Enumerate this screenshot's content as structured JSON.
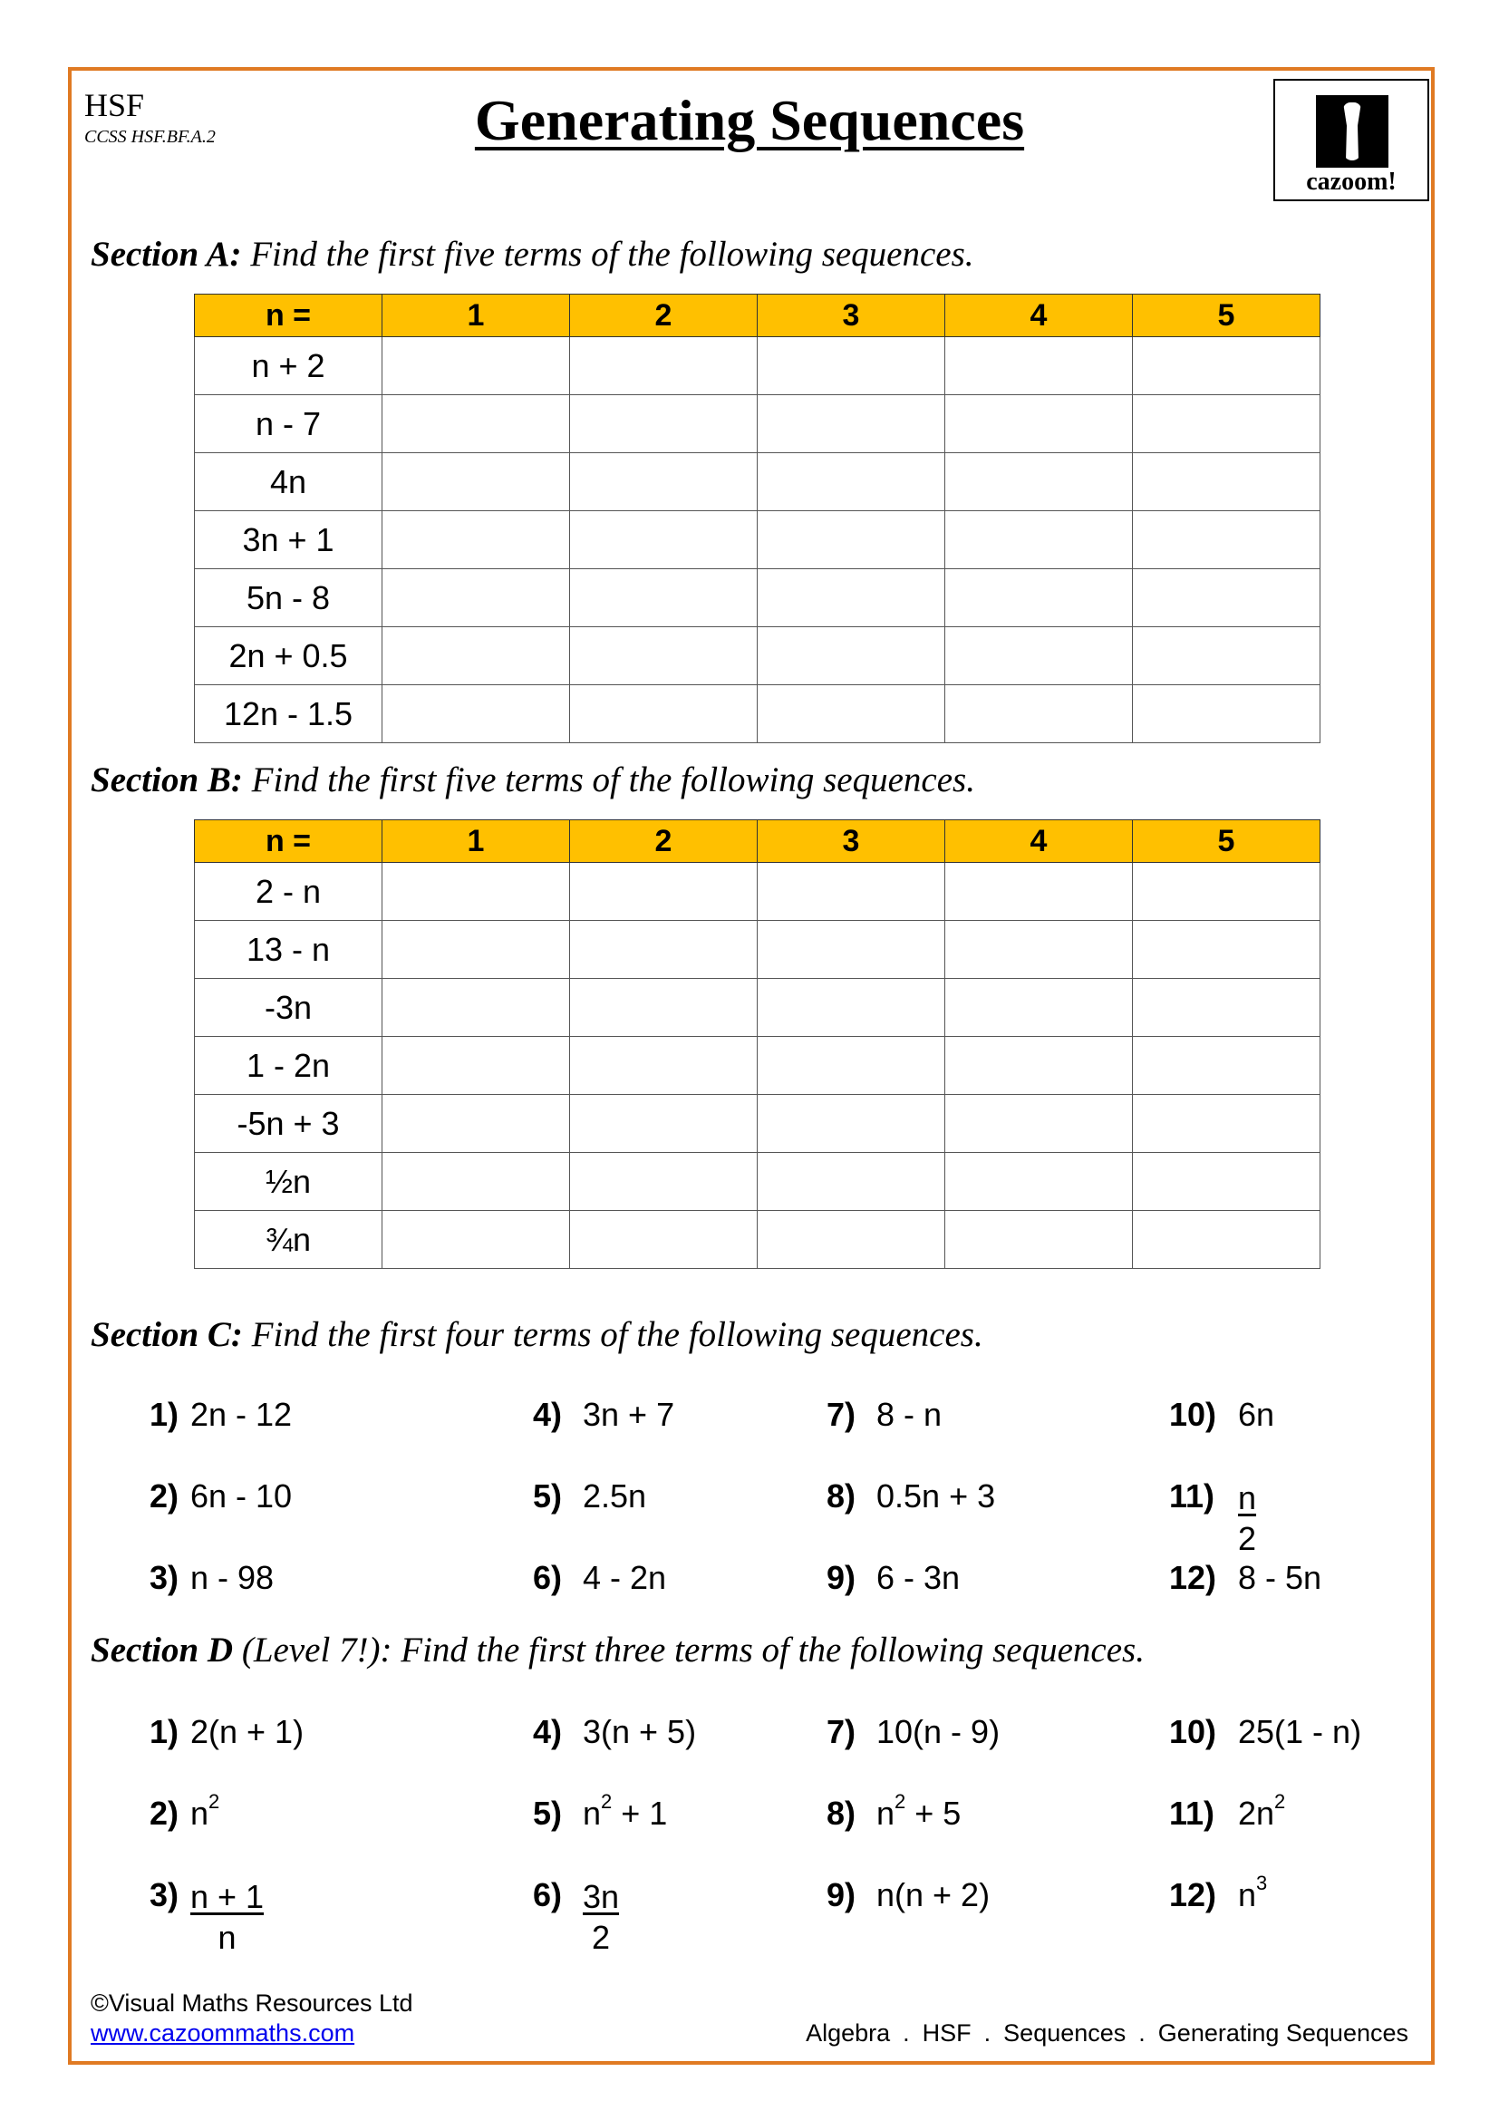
{
  "header": {
    "level": "HSF",
    "standard": "CCSS HSF.BF.A.2",
    "title": "Generating Sequences",
    "logo_text": "cazoom!"
  },
  "section_a": {
    "label": "Section A:",
    "instruction": " Find the first five terms of the following sequences.",
    "columns": [
      "n =",
      "1",
      "2",
      "3",
      "4",
      "5"
    ],
    "rows": [
      "n + 2",
      "n - 7",
      "4n",
      "3n + 1",
      "5n - 8",
      "2n + 0.5",
      "12n - 1.5"
    ]
  },
  "section_b": {
    "label": "Section B:",
    "instruction": " Find the first five terms of the following sequences.",
    "columns": [
      "n =",
      "1",
      "2",
      "3",
      "4",
      "5"
    ],
    "rows": [
      "2 - n",
      "13 - n",
      "-3n",
      "1 - 2n",
      "-5n + 3",
      "½n",
      "¾n"
    ]
  },
  "section_c": {
    "label": "Section C:",
    "instruction": " Find the first four terms of the following sequences.",
    "items": [
      {
        "num": "1)",
        "expr": "2n - 12"
      },
      {
        "num": "2)",
        "expr": "6n - 10"
      },
      {
        "num": "3)",
        "expr": "n - 98"
      },
      {
        "num": "4)",
        "expr": "3n + 7"
      },
      {
        "num": "5)",
        "expr": "2.5n"
      },
      {
        "num": "6)",
        "expr": "4 - 2n"
      },
      {
        "num": "7)",
        "expr": "8 - n"
      },
      {
        "num": "8)",
        "expr": "0.5n + 3"
      },
      {
        "num": "9)",
        "expr": "6 - 3n"
      },
      {
        "num": "10)",
        "expr": "6n"
      },
      {
        "num": "11)",
        "top": "n",
        "bottom": "2"
      },
      {
        "num": "12)",
        "expr": "8 - 5n"
      }
    ]
  },
  "section_d": {
    "label": "Section D",
    "level": " (Level 7!)",
    "instruction": ": Find the first three terms of the following sequences.",
    "items": [
      {
        "num": "1)",
        "expr": "2(n + 1)"
      },
      {
        "num": "2)",
        "expr": "n",
        "sup": "2"
      },
      {
        "num": "3)",
        "top": "n + 1",
        "bottom": "n"
      },
      {
        "num": "4)",
        "expr": "3(n + 5)"
      },
      {
        "num": "5)",
        "expr": "n",
        "sup": "2",
        "after": " + 1"
      },
      {
        "num": "6)",
        "top": "3n",
        "bottom": "2"
      },
      {
        "num": "7)",
        "expr": "10(n - 9)"
      },
      {
        "num": "8)",
        "expr": "n",
        "sup": "2",
        "after": " + 5"
      },
      {
        "num": "9)",
        "expr": "n(n + 2)"
      },
      {
        "num": "10)",
        "expr": "25(1 - n)"
      },
      {
        "num": "11)",
        "expr": "2n",
        "sup": "2"
      },
      {
        "num": "12)",
        "expr": "n",
        "sup": "3"
      }
    ]
  },
  "footer": {
    "copyright": "©Visual Maths Resources Ltd",
    "link": "www.cazoommaths.com",
    "breadcrumbs": [
      "Algebra",
      ".",
      "HSF",
      ".",
      "Sequences",
      ".",
      "Generating Sequences"
    ]
  },
  "colors": {
    "border": "#e07a23",
    "table_header": "#ffc000",
    "link": "#0000ee"
  }
}
